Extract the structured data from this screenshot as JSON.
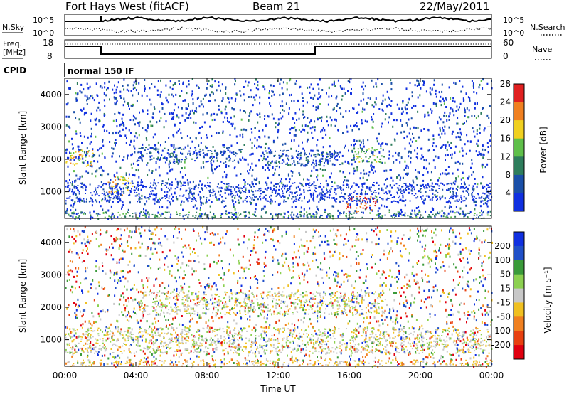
{
  "header": {
    "title": "Fort Hays West (fitACF)",
    "beam": "Beam 21",
    "date": "22/May/2011"
  },
  "panels": {
    "nsky_label": "N.Sky",
    "nsky_ticks": [
      "10^5",
      "10^0"
    ],
    "nsearch_label": "N.Search",
    "nsearch_ticks": [
      "10^5",
      "10^0"
    ],
    "freq_label": "Freq.",
    "freq_unit": "[MHz]",
    "freq_ticks": [
      "18",
      "8"
    ],
    "nave_label": "Nave",
    "nave_ticks": [
      "60",
      "0"
    ],
    "cpid_label": "CPID",
    "cpid_value": "normal 150 IF"
  },
  "chart_data": [
    {
      "type": "heatmap",
      "name": "power",
      "ylabel": "Slant Range [km]",
      "xlabel": "",
      "yticks": [
        "1000",
        "2000",
        "3000",
        "4000"
      ],
      "ylim": [
        180,
        4500
      ],
      "colorbar_label": "Power [dB]",
      "colorbar_ticks": [
        "4",
        "8",
        "12",
        "16",
        "20",
        "24",
        "28"
      ],
      "colors": [
        "#1030e0",
        "#1a4fa8",
        "#2e7d5c",
        "#5fbf4a",
        "#f0d020",
        "#f08020",
        "#e02020"
      ],
      "bands": [
        {
          "t0": 0.0,
          "t1": 1.6,
          "r0": 1800,
          "r1": 2300,
          "level": 4
        },
        {
          "t0": 2.4,
          "t1": 3.8,
          "r0": 900,
          "r1": 1500,
          "level": 4
        },
        {
          "t0": 4.0,
          "t1": 10.0,
          "r0": 1900,
          "r1": 2400,
          "level": 1
        },
        {
          "t0": 11.0,
          "t1": 15.5,
          "r0": 1800,
          "r1": 2300,
          "level": 1
        },
        {
          "t0": 16.2,
          "t1": 18.0,
          "r0": 1900,
          "r1": 2400,
          "level": 3
        },
        {
          "t0": 15.8,
          "t1": 17.5,
          "r0": 400,
          "r1": 900,
          "level": 6
        },
        {
          "t0": 0.0,
          "t1": 24.0,
          "r0": 200,
          "r1": 400,
          "level": 2
        },
        {
          "t0": 0.0,
          "t1": 24.0,
          "r0": 700,
          "r1": 1300,
          "level": 0
        }
      ]
    },
    {
      "type": "heatmap",
      "name": "velocity",
      "ylabel": "Slant Range [km]",
      "xlabel": "Time UT",
      "yticks": [
        "1000",
        "2000",
        "3000",
        "4000"
      ],
      "ylim": [
        180,
        4500
      ],
      "colorbar_label": "Velocity [m s⁻¹]",
      "colorbar_ticks": [
        "200",
        "100",
        "50",
        "15",
        "-15",
        "-50",
        "-100",
        "-200"
      ],
      "colors": [
        "#1030e0",
        "#2050c8",
        "#3a9a3a",
        "#8cd050",
        "#c8c8c8",
        "#f0c020",
        "#f08020",
        "#e84010",
        "#e00010"
      ],
      "xticks": [
        "00:00",
        "04:00",
        "08:00",
        "12:00",
        "16:00",
        "20:00",
        "00:00"
      ],
      "xlim": [
        0,
        24
      ],
      "bands": [
        {
          "t0": 0.0,
          "t1": 24.0,
          "r0": 600,
          "r1": 1400,
          "level": 4
        },
        {
          "t0": 4.0,
          "t1": 18.0,
          "r0": 1800,
          "r1": 2500,
          "level": 4
        },
        {
          "t0": 0.0,
          "t1": 24.0,
          "r0": 200,
          "r1": 400,
          "level": 5
        }
      ]
    }
  ]
}
